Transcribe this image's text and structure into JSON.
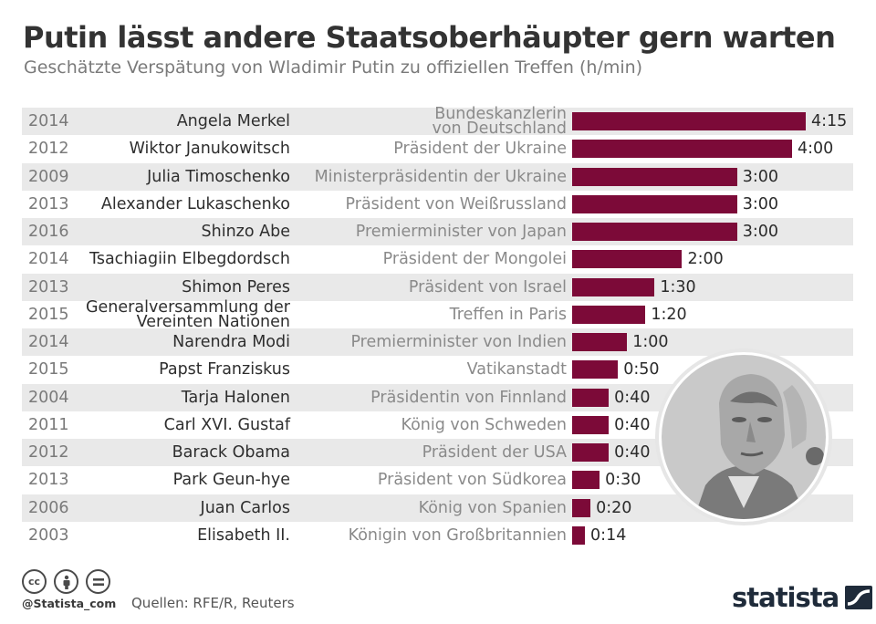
{
  "title": "Putin lässt andere Staatsoberhäupter gern warten",
  "subtitle": "Geschätzte Verspätung von Wladimir Putin zu offiziellen Treffen (h/min)",
  "colors": {
    "bar": "#7c0a38",
    "stripe": "#e9e9e9",
    "title": "#333333"
  },
  "chart_data": {
    "type": "bar",
    "orientation": "horizontal",
    "unit": "h/min",
    "rows": [
      {
        "year": "2014",
        "name": "Angela Merkel",
        "role": "Bundeskanzlerin von Deutschland",
        "label": "4:15",
        "minutes": 255
      },
      {
        "year": "2012",
        "name": "Wiktor Janukowitsch",
        "role": "Präsident der Ukraine",
        "label": "4:00",
        "minutes": 240
      },
      {
        "year": "2009",
        "name": "Julia Timoschenko",
        "role": "Ministerpräsidentin der Ukraine",
        "label": "3:00",
        "minutes": 180
      },
      {
        "year": "2013",
        "name": "Alexander Lukaschenko",
        "role": "Präsident von Weißrussland",
        "label": "3:00",
        "minutes": 180
      },
      {
        "year": "2016",
        "name": "Shinzo Abe",
        "role": "Premierminister von Japan",
        "label": "3:00",
        "minutes": 180
      },
      {
        "year": "2014",
        "name": "Tsachiagiin Elbegdordsch",
        "role": "Präsident der Mongolei",
        "label": "2:00",
        "minutes": 120
      },
      {
        "year": "2013",
        "name": "Shimon Peres",
        "role": "Präsident von Israel",
        "label": "1:30",
        "minutes": 90
      },
      {
        "year": "2015",
        "name": "Generalversammlung der Vereinten Nationen",
        "role": "Treffen in Paris",
        "label": "1:20",
        "minutes": 80
      },
      {
        "year": "2014",
        "name": "Narendra Modi",
        "role": "Premierminister von Indien",
        "label": "1:00",
        "minutes": 60
      },
      {
        "year": "2015",
        "name": "Papst Franziskus",
        "role": "Vatikanstadt",
        "label": "0:50",
        "minutes": 50
      },
      {
        "year": "2004",
        "name": "Tarja Halonen",
        "role": "Präsidentin von Finnland",
        "label": "0:40",
        "minutes": 40
      },
      {
        "year": "2011",
        "name": "Carl XVI. Gustaf",
        "role": "König von Schweden",
        "label": "0:40",
        "minutes": 40
      },
      {
        "year": "2012",
        "name": "Barack Obama",
        "role": "Präsident der USA",
        "label": "0:40",
        "minutes": 40
      },
      {
        "year": "2013",
        "name": "Park Geun-hye",
        "role": "Präsident von Südkorea",
        "label": "0:30",
        "minutes": 30
      },
      {
        "year": "2006",
        "name": "Juan Carlos",
        "role": "König von Spanien",
        "label": "0:20",
        "minutes": 20
      },
      {
        "year": "2003",
        "name": "Elisabeth II.",
        "role": "Königin von Großbritannien",
        "label": "0:14",
        "minutes": 14
      }
    ]
  },
  "footer": {
    "handle": "@Statista_com",
    "sources": "Quellen: RFE/R, Reuters",
    "logo": "statista",
    "license_icons": [
      "cc-icon",
      "by-icon",
      "nd-icon"
    ]
  }
}
